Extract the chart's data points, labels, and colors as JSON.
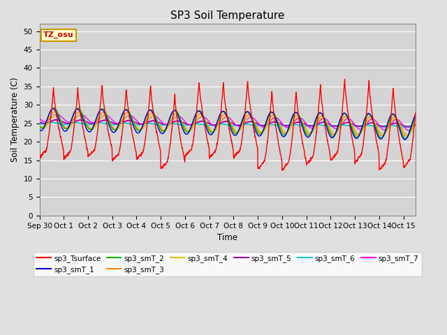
{
  "title": "SP3 Soil Temperature",
  "ylabel": "Soil Temperature (C)",
  "xlabel": "Time",
  "timezone_label": "TZ_osu",
  "ylim": [
    0,
    52
  ],
  "yticks": [
    0,
    5,
    10,
    15,
    20,
    25,
    30,
    35,
    40,
    45,
    50
  ],
  "xtick_labels": [
    "Sep 30",
    "Oct 1",
    "Oct 2",
    "Oct 3",
    "Oct 4",
    "Oct 5",
    "Oct 6",
    "Oct 7",
    "Oct 8",
    "Oct 9",
    "Oct 10",
    "Oct 11",
    "Oct 12",
    "Oct 13",
    "Oct 14",
    "Oct 15"
  ],
  "background_color": "#e0e0e0",
  "plot_bg_color": "#d4d4d4",
  "series_colors": {
    "sp3_Tsurface": "#ff0000",
    "sp3_smT_1": "#0000cc",
    "sp3_smT_2": "#00bb00",
    "sp3_smT_3": "#ff8800",
    "sp3_smT_4": "#cccc00",
    "sp3_smT_5": "#9900bb",
    "sp3_smT_6": "#00cccc",
    "sp3_smT_7": "#ff00ff"
  },
  "n_days": 15.5,
  "dt": 0.01
}
